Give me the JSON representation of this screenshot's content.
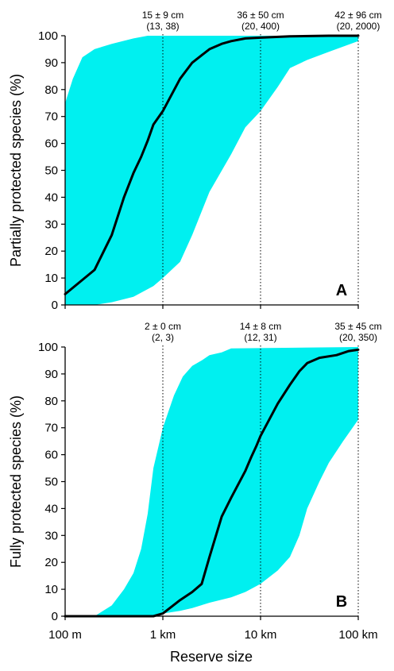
{
  "colors": {
    "band": "#00F0F0",
    "median": "#000000",
    "axis": "#000000"
  },
  "xaxis": {
    "label": "Reserve size",
    "scale": "log",
    "ticks": [
      {
        "value": 0.1,
        "label": "100 m"
      },
      {
        "value": 1,
        "label": "1 km"
      },
      {
        "value": 10,
        "label": "10 km"
      },
      {
        "value": 100,
        "label": "100 km"
      }
    ]
  },
  "chart_data": [
    {
      "type": "area",
      "panel_label": "A",
      "ylabel": "Partially protected species (%)",
      "ylim": [
        0,
        100
      ],
      "yticks": [
        0,
        10,
        20,
        30,
        40,
        50,
        60,
        70,
        80,
        90,
        100
      ],
      "xlim": [
        0.1,
        100
      ],
      "xscale": "log",
      "band_upper": {
        "x": [
          0.1,
          0.12,
          0.15,
          0.2,
          0.3,
          0.5,
          0.7,
          1,
          100
        ],
        "y": [
          75,
          84,
          92,
          95,
          97,
          99,
          100,
          100,
          100
        ]
      },
      "band_lower": {
        "x": [
          0.1,
          0.2,
          0.3,
          0.5,
          0.8,
          1,
          1.5,
          2,
          3,
          5,
          7,
          10,
          15,
          20,
          30,
          50,
          100
        ],
        "y": [
          0,
          0,
          1,
          3,
          7,
          10,
          16,
          26,
          42,
          56,
          66,
          72,
          81,
          88,
          91,
          94,
          98
        ]
      },
      "median": {
        "x": [
          0.1,
          0.2,
          0.3,
          0.4,
          0.5,
          0.6,
          0.7,
          0.8,
          1,
          1.5,
          2,
          3,
          4,
          5,
          7,
          10,
          20,
          50,
          100
        ],
        "y": [
          4,
          13,
          26,
          40,
          49,
          55,
          61,
          67,
          72,
          84,
          90,
          95,
          97,
          98,
          99,
          99.3,
          99.8,
          100,
          100
        ]
      },
      "annotations": [
        {
          "x": 1,
          "line1": "15 ± 9 cm",
          "line2": "(13, 38)"
        },
        {
          "x": 10,
          "line1": "36 ± 50 cm",
          "line2": "(20, 400)"
        },
        {
          "x": 100,
          "line1": "42 ± 96 cm",
          "line2": "(20, 2000)"
        }
      ]
    },
    {
      "type": "area",
      "panel_label": "B",
      "ylabel": "Fully protected species (%)",
      "ylim": [
        0,
        100
      ],
      "yticks": [
        0,
        10,
        20,
        30,
        40,
        50,
        60,
        70,
        80,
        90,
        100
      ],
      "xlim": [
        0.1,
        100
      ],
      "xscale": "log",
      "band_upper": {
        "x": [
          0.1,
          0.2,
          0.3,
          0.4,
          0.5,
          0.6,
          0.7,
          0.8,
          1,
          1.3,
          1.6,
          2,
          2.5,
          3,
          4,
          5,
          100
        ],
        "y": [
          0,
          0,
          4,
          10,
          16,
          25,
          38,
          55,
          70,
          82,
          89,
          93,
          95,
          97,
          98,
          99.5,
          100
        ]
      },
      "band_lower": {
        "x": [
          0.1,
          0.8,
          1,
          1.5,
          2,
          3,
          5,
          7,
          10,
          15,
          20,
          25,
          30,
          40,
          50,
          70,
          100
        ],
        "y": [
          0,
          0,
          1,
          2,
          3,
          5,
          7,
          9,
          12,
          17,
          22,
          30,
          40,
          50,
          57,
          65,
          73
        ]
      },
      "median": {
        "x": [
          0.1,
          0.2,
          0.5,
          0.8,
          1,
          1.5,
          2,
          2.5,
          3,
          4,
          5,
          7,
          8,
          9,
          10,
          15,
          20,
          25,
          30,
          40,
          60,
          80,
          100
        ],
        "y": [
          0,
          0,
          0,
          0,
          1,
          6,
          9,
          12,
          22,
          37,
          44,
          54,
          59,
          63,
          67,
          79,
          86,
          91,
          94,
          96,
          97,
          98.5,
          99
        ]
      },
      "annotations": [
        {
          "x": 1,
          "line1": "2 ± 0 cm",
          "line2": "(2, 3)"
        },
        {
          "x": 10,
          "line1": "14 ± 8 cm",
          "line2": "(12, 31)"
        },
        {
          "x": 100,
          "line1": "35 ± 45 cm",
          "line2": "(20, 350)"
        }
      ]
    }
  ]
}
